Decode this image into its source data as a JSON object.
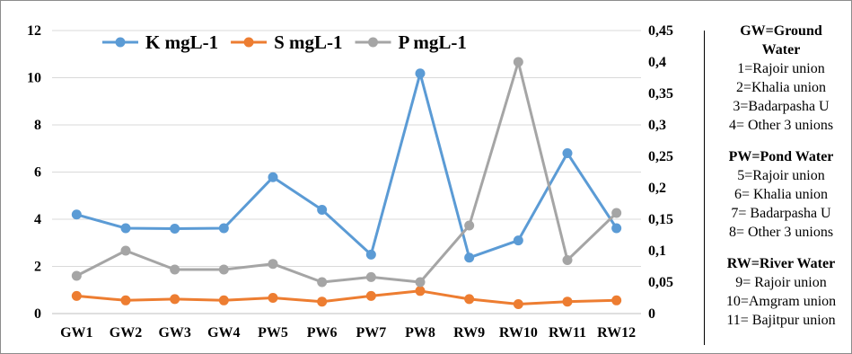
{
  "chart_data": {
    "type": "line",
    "categories": [
      "GW1",
      "GW2",
      "GW3",
      "GW4",
      "PW5",
      "PW6",
      "PW7",
      "PW8",
      "RW9",
      "RW10",
      "RW11",
      "RW12"
    ],
    "y_left": {
      "ticks": [
        "0",
        "2",
        "4",
        "6",
        "8",
        "10",
        "12"
      ],
      "range": [
        0,
        12
      ]
    },
    "y_right": {
      "ticks": [
        "0",
        "0,05",
        "0,1",
        "0,15",
        "0,2",
        "0,25",
        "0,3",
        "0,35",
        "0,4",
        "0,45"
      ],
      "range": [
        0,
        0.45
      ]
    },
    "grid": "horizontal",
    "legend_position": "top",
    "series": [
      {
        "name": "K mgL-1",
        "axis": "left",
        "color": "#5b9bd5",
        "values": [
          4.2,
          3.62,
          3.6,
          3.62,
          5.78,
          4.4,
          2.5,
          10.18,
          2.37,
          3.1,
          6.8,
          3.62
        ]
      },
      {
        "name": "S mgL-1",
        "axis": "right",
        "color": "#ed7d31",
        "values": [
          0.028,
          0.021,
          0.023,
          0.021,
          0.025,
          0.019,
          0.028,
          0.036,
          0.023,
          0.015,
          0.019,
          0.021
        ]
      },
      {
        "name": "P mgL-1",
        "axis": "right",
        "color": "#a5a5a5",
        "values": [
          0.06,
          0.1,
          0.07,
          0.07,
          0.079,
          0.05,
          0.058,
          0.05,
          0.14,
          0.4,
          0.085,
          0.16
        ]
      }
    ]
  },
  "side_panel": {
    "groups": [
      {
        "title_lines": [
          "GW=Ground",
          "Water"
        ],
        "items": [
          "1=Rajoir union",
          "2=Khalia union",
          "3=Badarpasha U",
          "4= Other 3 unions"
        ]
      },
      {
        "title_lines": [
          "PW=Pond Water"
        ],
        "items": [
          "5=Rajoir union",
          "6= Khalia union",
          "7= Badarpasha U",
          "8= Other 3 unions"
        ]
      },
      {
        "title_lines": [
          "RW=River Water"
        ],
        "items": [
          "9= Rajoir union",
          "10=Amgram union",
          "11= Bajitpur union"
        ]
      }
    ]
  }
}
